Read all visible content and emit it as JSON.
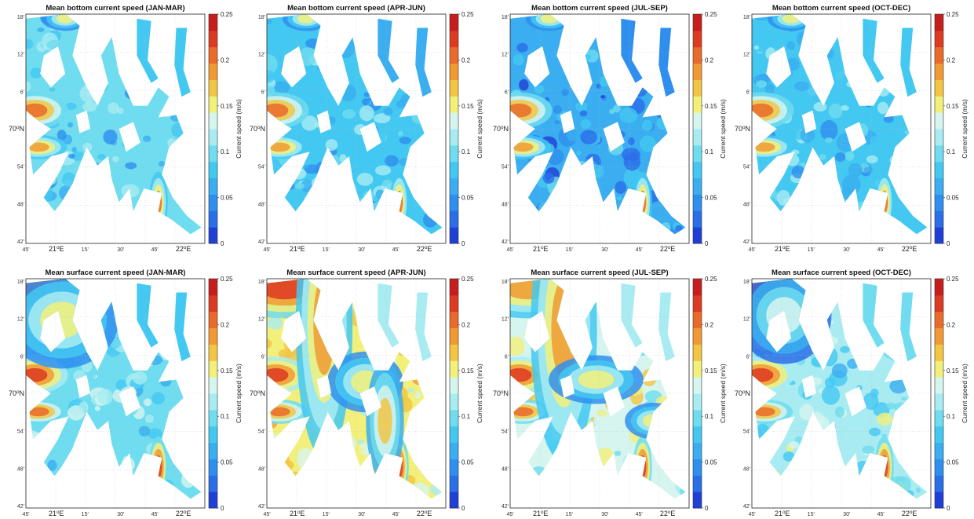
{
  "chart_data": [
    {
      "type": "heatmap",
      "title": "Mean bottom current speed (JAN-MAR)",
      "layer": "bottom",
      "season": "JAN-MAR",
      "intensity": 0.35,
      "hot": false,
      "colorbar": {
        "label": "Current speed (m/s)",
        "ticks": [
          "0",
          "0.05",
          "0.1",
          "0.15",
          "0.2",
          "0.25"
        ],
        "range": [
          0,
          0.25
        ]
      },
      "y_ticks": [
        "18'",
        "12'",
        "6'",
        "70°N",
        "54'",
        "48'",
        "42'"
      ],
      "x_ticks": [
        "45'",
        "21°E",
        "15'",
        "30'",
        "45'",
        "22°E"
      ]
    },
    {
      "type": "heatmap",
      "title": "Mean bottom current speed (APR-JUN)",
      "layer": "bottom",
      "season": "APR-JUN",
      "intensity": 0.33,
      "hot": false,
      "colorbar": {
        "label": "Current speed (m/s)",
        "ticks": [
          "0",
          "0.05",
          "0.1",
          "0.15",
          "0.2",
          "0.25"
        ],
        "range": [
          0,
          0.25
        ]
      },
      "y_ticks": [
        "18'",
        "12'",
        "6'",
        "70°N",
        "54'",
        "48'",
        "42'"
      ],
      "x_ticks": [
        "45'",
        "21°E",
        "15'",
        "30'",
        "45'",
        "22°E"
      ]
    },
    {
      "type": "heatmap",
      "title": "Mean bottom current speed (JUL-SEP)",
      "layer": "bottom",
      "season": "JUL-SEP",
      "intensity": 0.22,
      "hot": false,
      "colorbar": {
        "label": "Current speed (m/s)",
        "ticks": [
          "0",
          "0.05",
          "0.1",
          "0.15",
          "0.2",
          "0.25"
        ],
        "range": [
          0,
          0.25
        ]
      },
      "y_ticks": [
        "18'",
        "12'",
        "6'",
        "70°N",
        "54'",
        "48'",
        "42'"
      ],
      "x_ticks": [
        "45'",
        "21°E",
        "15'",
        "30'",
        "45'",
        "22°E"
      ]
    },
    {
      "type": "heatmap",
      "title": "Mean bottom current speed (OCT-DEC)",
      "layer": "bottom",
      "season": "OCT-DEC",
      "intensity": 0.34,
      "hot": false,
      "colorbar": {
        "label": "Current speed (m/s)",
        "ticks": [
          "0",
          "0.05",
          "0.1",
          "0.15",
          "0.2",
          "0.25"
        ],
        "range": [
          0,
          0.25
        ]
      },
      "y_ticks": [
        "18'",
        "12'",
        "6'",
        "70°N",
        "54'",
        "48'",
        "42'"
      ],
      "x_ticks": [
        "45'",
        "21°E",
        "15'",
        "30'",
        "45'",
        "22°E"
      ]
    },
    {
      "type": "heatmap",
      "title": "Mean surface current speed (JAN-MAR)",
      "layer": "surface",
      "season": "JAN-MAR",
      "intensity": 0.42,
      "hot": true,
      "colorbar": {
        "label": "Current speed (m/s)",
        "ticks": [
          "0",
          "0.05",
          "0.1",
          "0.15",
          "0.2",
          "0.25"
        ],
        "range": [
          0,
          0.25
        ]
      },
      "y_ticks": [
        "18'",
        "12'",
        "6'",
        "70°N",
        "54'",
        "48'",
        "42'"
      ],
      "x_ticks": [
        "45'",
        "21°E",
        "15'",
        "30'",
        "45'",
        "22°E"
      ]
    },
    {
      "type": "heatmap",
      "title": "Mean surface current speed (APR-JUN)",
      "layer": "surface",
      "season": "APR-JUN",
      "intensity": 0.62,
      "hot": true,
      "colorbar": {
        "label": "Current speed (m/s)",
        "ticks": [
          "0",
          "0.05",
          "0.1",
          "0.15",
          "0.2",
          "0.25"
        ],
        "range": [
          0,
          0.25
        ]
      },
      "y_ticks": [
        "18'",
        "12'",
        "6'",
        "70°N",
        "54'",
        "48'",
        "42'"
      ],
      "x_ticks": [
        "45'",
        "21°E",
        "15'",
        "30'",
        "45'",
        "22°E"
      ]
    },
    {
      "type": "heatmap",
      "title": "Mean surface current speed (JUL-SEP)",
      "layer": "surface",
      "season": "JUL-SEP",
      "intensity": 0.56,
      "hot": true,
      "colorbar": {
        "label": "Current speed (m/s)",
        "ticks": [
          "0",
          "0.05",
          "0.1",
          "0.15",
          "0.2",
          "0.25"
        ],
        "range": [
          0,
          0.25
        ]
      },
      "y_ticks": [
        "18'",
        "12'",
        "6'",
        "70°N",
        "54'",
        "48'",
        "42'"
      ],
      "x_ticks": [
        "45'",
        "21°E",
        "15'",
        "30'",
        "45'",
        "22°E"
      ]
    },
    {
      "type": "heatmap",
      "title": "Mean surface current speed (OCT-DEC)",
      "layer": "surface",
      "season": "OCT-DEC",
      "intensity": 0.44,
      "hot": true,
      "colorbar": {
        "label": "Current speed (m/s)",
        "ticks": [
          "0",
          "0.05",
          "0.1",
          "0.15",
          "0.2",
          "0.25"
        ],
        "range": [
          0,
          0.25
        ]
      },
      "y_ticks": [
        "18'",
        "12'",
        "6'",
        "70°N",
        "54'",
        "48'",
        "42'"
      ],
      "x_ticks": [
        "45'",
        "21°E",
        "15'",
        "30'",
        "45'",
        "22°E"
      ]
    }
  ],
  "palette": [
    "#1f3fd6",
    "#2a6ee8",
    "#2f8fee",
    "#3aaef0",
    "#43c8f2",
    "#6fdcef",
    "#a8ecf2",
    "#d6f5ef",
    "#f2f07a",
    "#f2c542",
    "#f19a33",
    "#ea6a2a",
    "#dd3a22",
    "#c81d1d"
  ],
  "land_color": "#ffffff",
  "grid": true
}
